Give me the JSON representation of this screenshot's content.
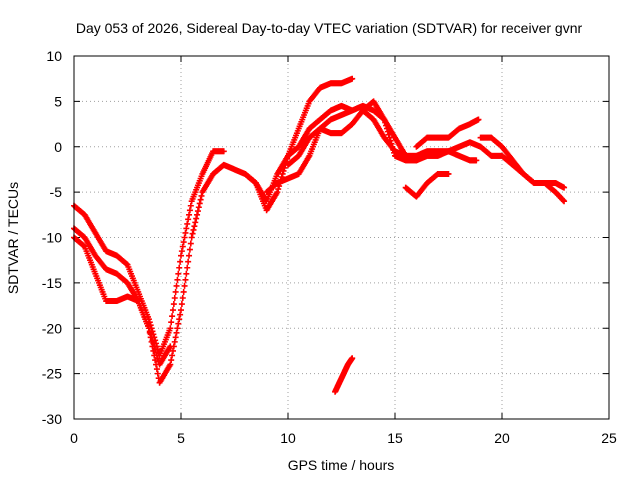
{
  "chart_data": {
    "type": "scatter",
    "title": "Day 053 of 2026, Sidereal Day-to-day VTEC variation (SDTVAR) for receiver gvnr",
    "xlabel": "GPS time / hours",
    "ylabel": "SDTVAR / TECUs",
    "xlim": [
      0,
      25
    ],
    "ylim": [
      -30,
      10
    ],
    "x_ticks": [
      "0",
      "5",
      "10",
      "15",
      "20",
      "25"
    ],
    "y_ticks": [
      "10",
      "5",
      "0",
      "-5",
      "-10",
      "-15",
      "-20",
      "-25",
      "-30"
    ],
    "grid": true,
    "marker": "+",
    "color": "#ff0000",
    "series": [
      {
        "x": [
          0,
          0.5,
          1,
          1.5,
          2,
          2.5,
          3,
          3.5,
          4,
          4.5,
          5,
          5.5,
          6,
          6.5,
          7
        ],
        "y": [
          -6.5,
          -7.5,
          -9.5,
          -11.5,
          -12,
          -13,
          -16,
          -19,
          -23,
          -20,
          -12,
          -6,
          -3,
          -0.5,
          -0.5
        ]
      },
      {
        "x": [
          0,
          0.5,
          1,
          1.5,
          2,
          2.5,
          3,
          3.5,
          4,
          4.5
        ],
        "y": [
          -9,
          -10,
          -12,
          -13.5,
          -14,
          -15,
          -17,
          -20,
          -24,
          -22
        ]
      },
      {
        "x": [
          0,
          0.5,
          1,
          1.5,
          2,
          2.5,
          3,
          3.5,
          4,
          4.5,
          5,
          5.5,
          6,
          6.5,
          7,
          7.5,
          8,
          8.5,
          9,
          9.5,
          10,
          10.5,
          11,
          11.5,
          12,
          12.5,
          13,
          13.5,
          14,
          14.5,
          15,
          15.5,
          16,
          16.5,
          17,
          17.5,
          18,
          18.5,
          19,
          19.5,
          20,
          20.5,
          21,
          21.5,
          22,
          22.5,
          22.9
        ],
        "y": [
          -10,
          -11,
          -14,
          -17,
          -17,
          -16.5,
          -17,
          -20,
          -26,
          -24,
          -18,
          -10,
          -5,
          -3,
          -2,
          -2.5,
          -3,
          -4,
          -6,
          -3,
          -1,
          0,
          2,
          3,
          4,
          4.5,
          4,
          4.5,
          4,
          3,
          -1,
          -1.5,
          -1.5,
          -1,
          -1,
          -0.5,
          0,
          0.5,
          0,
          -1,
          -1,
          -2,
          -3,
          -4,
          -4,
          -5,
          -6
        ]
      },
      {
        "x": [
          8,
          8.5,
          9,
          9.5,
          10,
          10.5,
          11,
          11.5,
          12,
          12.5,
          13
        ],
        "y": [
          -3,
          -4,
          -7,
          -5,
          -1,
          2,
          5,
          6.5,
          7,
          7,
          7.5
        ]
      },
      {
        "x": [
          9,
          9.5,
          10,
          10.5,
          11,
          11.5,
          12,
          12.5,
          13
        ],
        "y": [
          -5,
          -4,
          -3.5,
          -3,
          -1,
          2,
          3,
          3.5,
          4
        ]
      },
      {
        "x": [
          10,
          10.5,
          11,
          11.5,
          12,
          12.5,
          13,
          13.5,
          14,
          14.5,
          15,
          15.5,
          16
        ],
        "y": [
          -2,
          -1,
          1,
          2,
          1.5,
          1.5,
          2.5,
          4,
          5,
          3,
          1,
          -1,
          -1.5
        ]
      },
      {
        "x": [
          12.2,
          12.4,
          12.6,
          12.8,
          13
        ],
        "y": [
          -27,
          -26,
          -25,
          -24,
          -23.3
        ]
      },
      {
        "x": [
          13.5,
          14,
          14.5,
          15,
          15.5,
          16,
          16.5,
          17,
          17.5,
          18,
          18.5,
          18.8
        ],
        "y": [
          4,
          3,
          1,
          -0.5,
          -1,
          -1,
          -0.5,
          -0.5,
          -0.5,
          -1,
          -1.5,
          -1.5
        ]
      },
      {
        "x": [
          16,
          16.5,
          17,
          17.5,
          18,
          18.5,
          18.9
        ],
        "y": [
          0,
          1,
          1,
          1,
          2,
          2.5,
          3
        ]
      },
      {
        "x": [
          15.5,
          16,
          16.5,
          17,
          17.5
        ],
        "y": [
          -4.5,
          -5.5,
          -4,
          -3,
          -3
        ]
      },
      {
        "x": [
          19,
          19.5,
          20,
          20.5,
          21,
          21.5,
          22,
          22.5,
          22.9
        ],
        "y": [
          1,
          1,
          0,
          -1.5,
          -3,
          -4,
          -4,
          -4,
          -4.5
        ]
      }
    ]
  }
}
